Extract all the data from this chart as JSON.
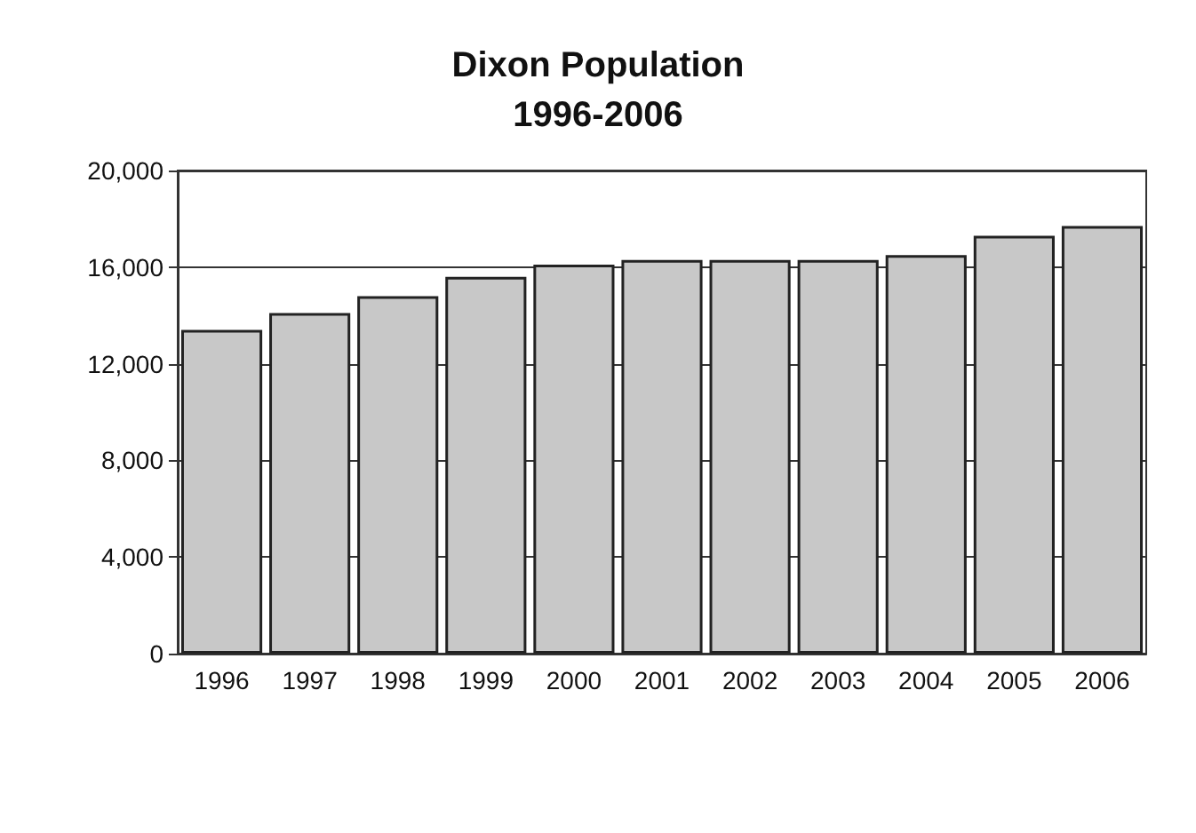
{
  "chart_data": {
    "type": "bar",
    "title": "Dixon Population\n1996-2006",
    "categories": [
      "1996",
      "1997",
      "1998",
      "1999",
      "2000",
      "2001",
      "2002",
      "2003",
      "2004",
      "2005",
      "2006"
    ],
    "values": [
      13400,
      14100,
      14800,
      15600,
      16100,
      16300,
      16300,
      16300,
      16500,
      17300,
      17700
    ],
    "color": "#c8c8c8",
    "ylim": [
      0,
      20000
    ],
    "yticks": [
      0,
      {
        "value": 4000,
        "label": "4,000"
      },
      {
        "value": 8000,
        "label": "8,000"
      },
      {
        "value": 12000,
        "label": "12,000"
      },
      {
        "value": 16000,
        "label": "16,000"
      },
      {
        "value": 20000,
        "label": "20,000"
      }
    ],
    "grid": "y"
  }
}
